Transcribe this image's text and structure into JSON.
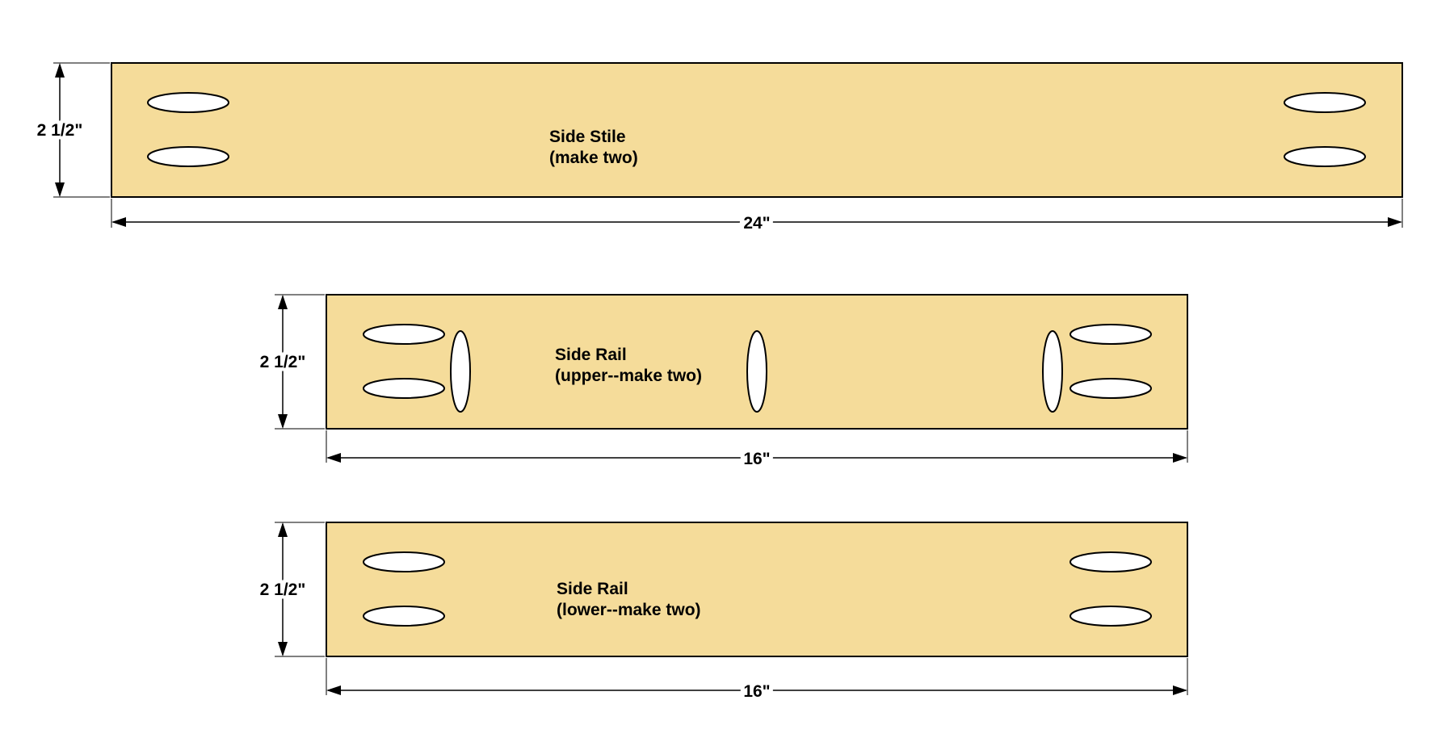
{
  "colors": {
    "board": "#f5dc9a",
    "line": "#000000",
    "hole": "#ffffff"
  },
  "parts": {
    "stile": {
      "name": "Side Stile",
      "qty": "(make two)",
      "height": "2 1/2\"",
      "length": "24\""
    },
    "rail_upper": {
      "name": "Side Rail",
      "qty": "(upper--make two)",
      "height": "2 1/2\"",
      "length": "16\""
    },
    "rail_lower": {
      "name": "Side Rail",
      "qty": "(lower--make two)",
      "height": "2 1/2\"",
      "length": "16\""
    }
  }
}
